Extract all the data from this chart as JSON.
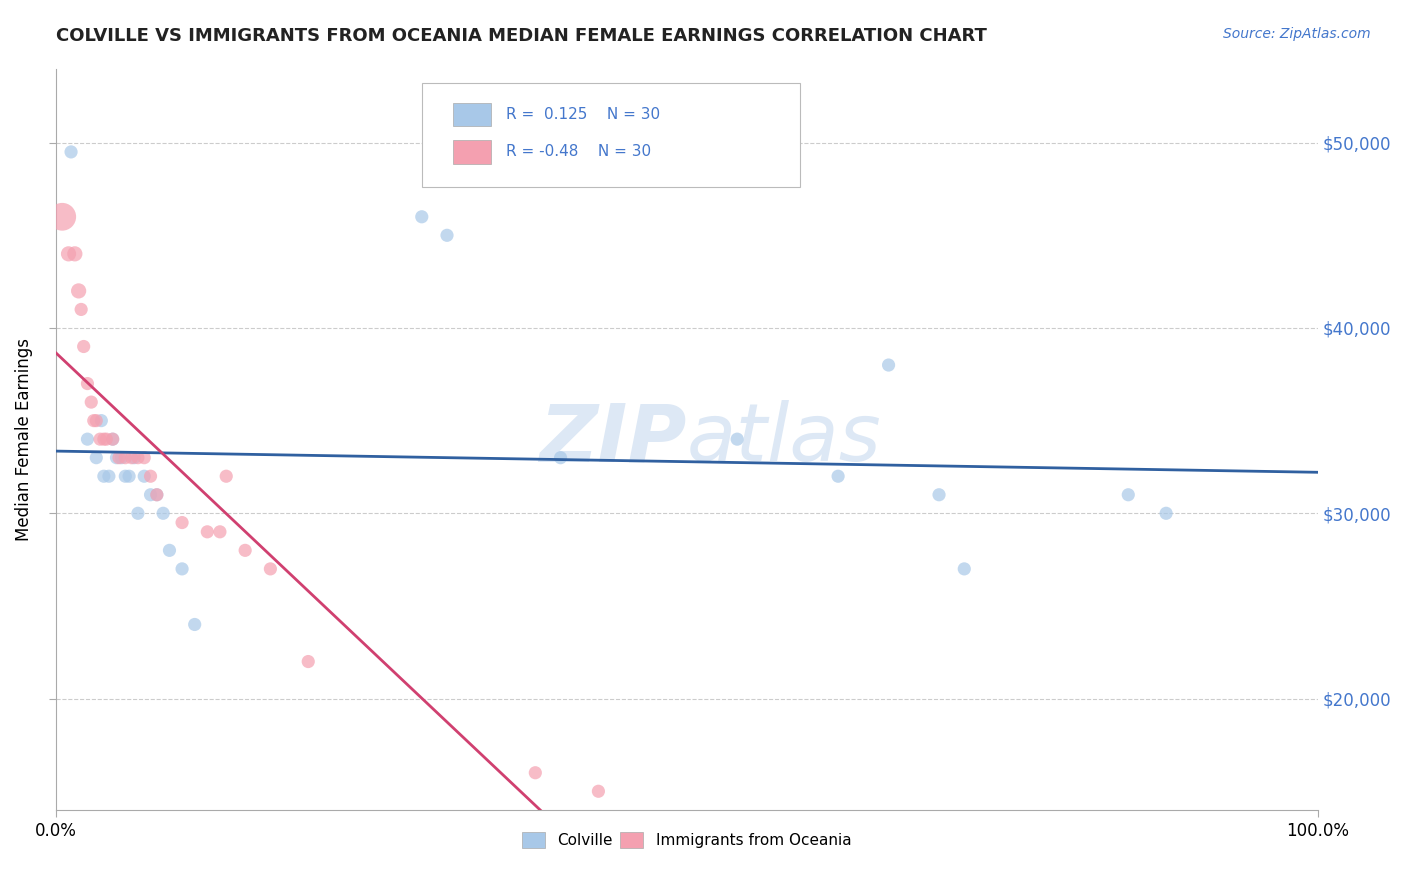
{
  "title": "COLVILLE VS IMMIGRANTS FROM OCEANIA MEDIAN FEMALE EARNINGS CORRELATION CHART",
  "source": "Source: ZipAtlas.com",
  "ylabel": "Median Female Earnings",
  "r_colville": 0.125,
  "n_colville": 30,
  "r_oceania": -0.48,
  "n_oceania": 30,
  "blue_dot_color": "#a8c8e8",
  "pink_dot_color": "#f4a0b0",
  "blue_line_color": "#3060a0",
  "pink_line_color": "#d04070",
  "title_color": "#222222",
  "source_color": "#4477cc",
  "right_ytick_color": "#4477cc",
  "watermark_color": "#dde8f5",
  "legend_box_color": "#cccccc",
  "ylim_low": 14000,
  "ylim_high": 54000,
  "yticks": [
    20000,
    30000,
    40000,
    50000
  ],
  "colville_x": [
    0.012,
    0.025,
    0.032,
    0.036,
    0.038,
    0.042,
    0.045,
    0.048,
    0.052,
    0.055,
    0.058,
    0.062,
    0.065,
    0.07,
    0.075,
    0.08,
    0.085,
    0.09,
    0.1,
    0.11,
    0.29,
    0.31,
    0.4,
    0.54,
    0.62,
    0.66,
    0.7,
    0.72,
    0.85,
    0.88
  ],
  "colville_y": [
    49500,
    34000,
    33000,
    35000,
    32000,
    32000,
    34000,
    33000,
    33000,
    32000,
    32000,
    33000,
    30000,
    32000,
    31000,
    31000,
    30000,
    28000,
    27000,
    24000,
    46000,
    45000,
    33000,
    34000,
    32000,
    38000,
    31000,
    27000,
    31000,
    30000
  ],
  "oceania_x": [
    0.005,
    0.01,
    0.015,
    0.018,
    0.02,
    0.022,
    0.025,
    0.028,
    0.03,
    0.032,
    0.035,
    0.038,
    0.04,
    0.045,
    0.05,
    0.055,
    0.06,
    0.065,
    0.07,
    0.075,
    0.08,
    0.1,
    0.12,
    0.13,
    0.135,
    0.15,
    0.17,
    0.2,
    0.38,
    0.43
  ],
  "oceania_y": [
    46000,
    44000,
    44000,
    42000,
    41000,
    39000,
    37000,
    36000,
    35000,
    35000,
    34000,
    34000,
    34000,
    34000,
    33000,
    33000,
    33000,
    33000,
    33000,
    32000,
    31000,
    29500,
    29000,
    29000,
    32000,
    28000,
    27000,
    22000,
    16000,
    15000
  ],
  "oceania_large_x": [
    0.005
  ],
  "oceania_large_y": [
    46000
  ]
}
